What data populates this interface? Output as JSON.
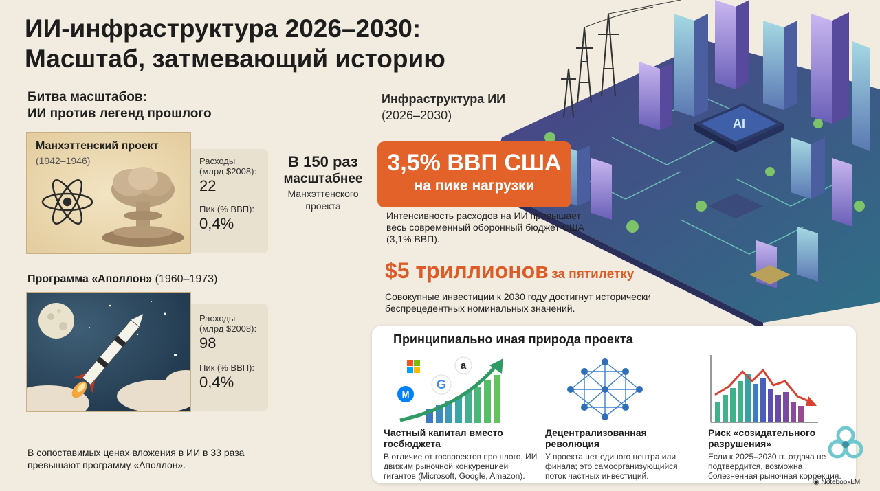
{
  "title": {
    "line1": "ИИ-инфраструктура  2026–2030:",
    "line2": "Масштаб, затмевающий историю"
  },
  "battle": {
    "line1": "Битва масштабов:",
    "line2": "ИИ против легенд прошлого"
  },
  "manhattan": {
    "name": "Манхэттенский проект",
    "years": "(1942–1946)",
    "spend_label_1": "Расходы",
    "spend_label_2": "(млрд $2008):",
    "spend_value": "22",
    "peak_label": "Пик (% ВВП):",
    "peak_value": "0,4%"
  },
  "comparison": {
    "big": "В 150 раз",
    "big2": "масштабнее",
    "small1": "Манхэттенского",
    "small2": "проекта"
  },
  "apollo": {
    "name": "Программа «Аполлон»",
    "years": "(1960–1973)",
    "spend_label_1": "Расходы",
    "spend_label_2": "(млрд $2008):",
    "spend_value": "98",
    "peak_label": "Пик (% ВВП):",
    "peak_value": "0,4%"
  },
  "bottom_note": "В сопоставимых ценах вложения в ИИ в 33 раза превышают программу «Аполлон».",
  "infra": {
    "title1": "Инфраструктура ИИ",
    "title2": "(2026–2030)",
    "gdp_big": "3,5% ВВП США",
    "gdp_small": "на пике нагрузки",
    "intensity": "Интенсивность расходов на ИИ превышает весь современный оборонный бюджет США (3,1% ВВП).",
    "trillion_big": "$5 триллионов",
    "trillion_small": "за пятилетку",
    "cumulative": "Совокупные инвестиции к 2030 году достигнут исторически беспрецедентных номинальных значений.",
    "chip_label": "AI"
  },
  "principle": {
    "title": "Принципиально иная природа проекта",
    "col1_title": "Частный капитал вместо госбюджета",
    "col1_body": "В отличие от госпроектов прошлого, ИИ движим рыночной конкуренцией гигантов (Microsoft, Google, Amazon).",
    "col2_title": "Децентрализованная революция",
    "col2_body": "У проекта нет единого центра или финала; это самоорганизующийся поток частных инвестиций.",
    "col3_title": "Риск «созидательного разрушения»",
    "col3_body": "Если к 2025–2030 гг. отдача не подтвердится, возможна болезненная рыночная коррекция."
  },
  "brand": "NotebookLM",
  "colors": {
    "accent_orange": "#e2622a",
    "background": "#f2ece0"
  }
}
